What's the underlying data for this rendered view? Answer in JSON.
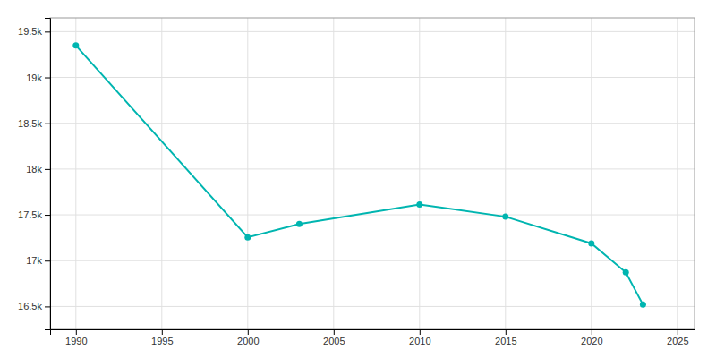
{
  "chart_data": {
    "type": "line",
    "x": [
      1990,
      2000,
      2003,
      2010,
      2015,
      2020,
      2022,
      2023
    ],
    "values": [
      19349,
      17254,
      17400,
      17614,
      17480,
      17188,
      16872,
      16520
    ],
    "color": "#00b5b0",
    "marker": "circle",
    "xlim": [
      1988.5,
      2026
    ],
    "ylim": [
      16250,
      19650
    ],
    "xticks": [
      1990,
      1995,
      2000,
      2005,
      2010,
      2015,
      2020,
      2025
    ],
    "yticks": [
      {
        "value": 16500,
        "label": "16.5k"
      },
      {
        "value": 17000,
        "label": "17k"
      },
      {
        "value": 17500,
        "label": "17.5k"
      },
      {
        "value": 18000,
        "label": "18k"
      },
      {
        "value": 18500,
        "label": "18.5k"
      },
      {
        "value": 19000,
        "label": "19k"
      },
      {
        "value": 19500,
        "label": "19.5k"
      }
    ],
    "grid": true
  }
}
